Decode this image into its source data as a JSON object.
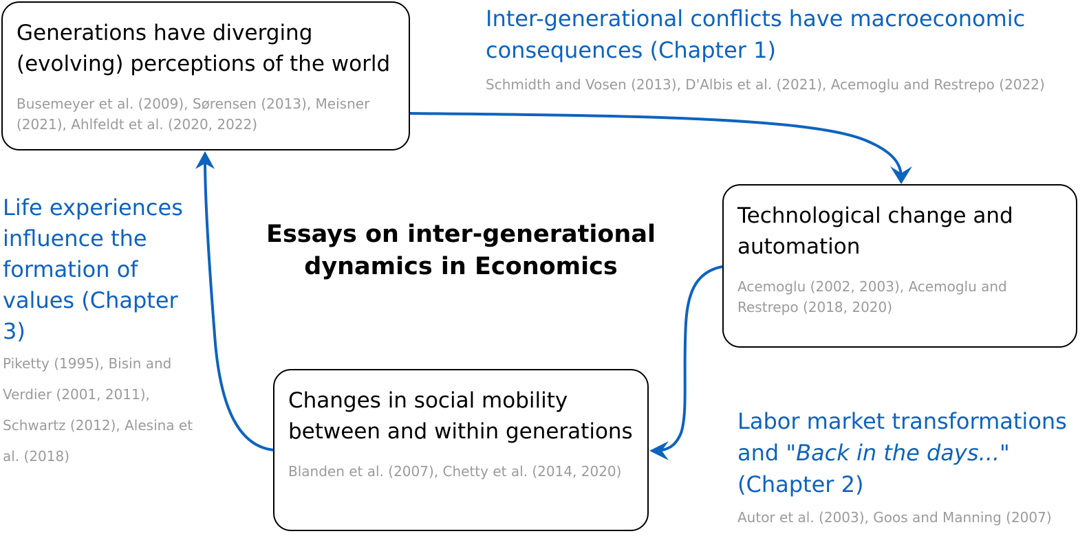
{
  "center_title": "Essays on inter-generational dynamics in Economics",
  "boxes": {
    "perceptions": {
      "title": "Generations have diverging (evolving) perceptions of the world",
      "refs": "Busemeyer et al. (2009), Sørensen  (2013), Meisner (2021), Ahlfeldt et al. (2020, 2022)"
    },
    "technology": {
      "title": "Technological change and automation",
      "refs": "Acemoglu (2002, 2003), Acemoglu and Restrepo (2018, 2020)"
    },
    "mobility": {
      "title": "Changes in social mobility between and within generations",
      "refs": "Blanden et al. (2007), Chetty et al. (2014, 2020)"
    }
  },
  "labels": {
    "chapter1": {
      "title": "Inter-generational conflicts have macroeconomic consequences (Chapter 1)",
      "refs": "Schmidth and Vosen (2013), D'Albis et al. (2021), Acemoglu and Restrepo (2022)"
    },
    "chapter2": {
      "title_pre": "Labor market transformations and \"",
      "title_italic": "Back in the days...",
      "title_post": "\" (Chapter 2)",
      "refs": "Autor et al. (2003), Goos and Manning (2007)"
    },
    "chapter3": {
      "title": "Life experiences influence the formation of values (Chapter 3)",
      "refs": "Piketty (1995), Bisin and Verdier (2001, 2011), Schwartz (2012), Alesina et al. (2018)"
    }
  },
  "colors": {
    "accent": "#0d63bf",
    "refs": "#9b9b9b",
    "border": "#000000"
  }
}
